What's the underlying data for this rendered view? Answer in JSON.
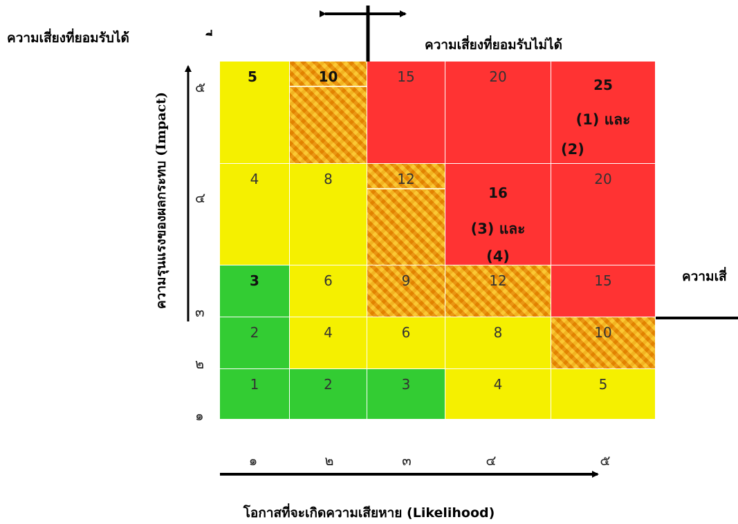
{
  "labels": {
    "acceptable": "ความเสี่ยงที่ยอมรับได้",
    "acceptable_fragment": "ี่",
    "unacceptable": "ความเสี่ยงที่ยอมรับไม่ได้",
    "right_fragment": "ความเสี่",
    "y_axis": "ความรุนแรงของผลกระทบ (Impact)",
    "x_axis": "โอกาสที่จะเกิดความเสียหาย (Likelihood)"
  },
  "y_ticks": [
    "๕",
    "๔",
    "๓",
    "๒",
    "๑"
  ],
  "x_ticks": [
    "๑",
    "๒",
    "๓",
    "๔",
    "๕"
  ],
  "rows": [
    {
      "impact": "๕",
      "cells": [
        {
          "value": "5",
          "color": "yellow",
          "bold": true
        },
        {
          "value": "10",
          "color": "orange",
          "bold": true
        },
        {
          "value": "15",
          "color": "red"
        },
        {
          "value": "20",
          "color": "red"
        },
        {
          "value": "25",
          "color": "red",
          "bold": true,
          "note1": "(1) และ",
          "note2": "(2)"
        }
      ]
    },
    {
      "impact": "๔",
      "cells": [
        {
          "value": "4",
          "color": "yellow"
        },
        {
          "value": "8",
          "color": "yellow"
        },
        {
          "value": "12",
          "color": "orange"
        },
        {
          "value": "16",
          "color": "red",
          "bold": true,
          "note1": "(3) และ",
          "note2": "(4)"
        },
        {
          "value": "20",
          "color": "red"
        }
      ]
    },
    {
      "impact": "๓",
      "cells": [
        {
          "value": "3",
          "color": "green",
          "bold": true
        },
        {
          "value": "6",
          "color": "yellow"
        },
        {
          "value": "9",
          "color": "orange"
        },
        {
          "value": "12",
          "color": "orange"
        },
        {
          "value": "15",
          "color": "red"
        }
      ]
    },
    {
      "impact": "๒",
      "cells": [
        {
          "value": "2",
          "color": "green"
        },
        {
          "value": "4",
          "color": "yellow"
        },
        {
          "value": "6",
          "color": "yellow"
        },
        {
          "value": "8",
          "color": "yellow"
        },
        {
          "value": "10",
          "color": "orange"
        }
      ]
    },
    {
      "impact": "๑",
      "cells": [
        {
          "value": "1",
          "color": "green"
        },
        {
          "value": "2",
          "color": "green"
        },
        {
          "value": "3",
          "color": "green"
        },
        {
          "value": "4",
          "color": "yellow"
        },
        {
          "value": "5",
          "color": "yellow"
        }
      ]
    }
  ]
}
